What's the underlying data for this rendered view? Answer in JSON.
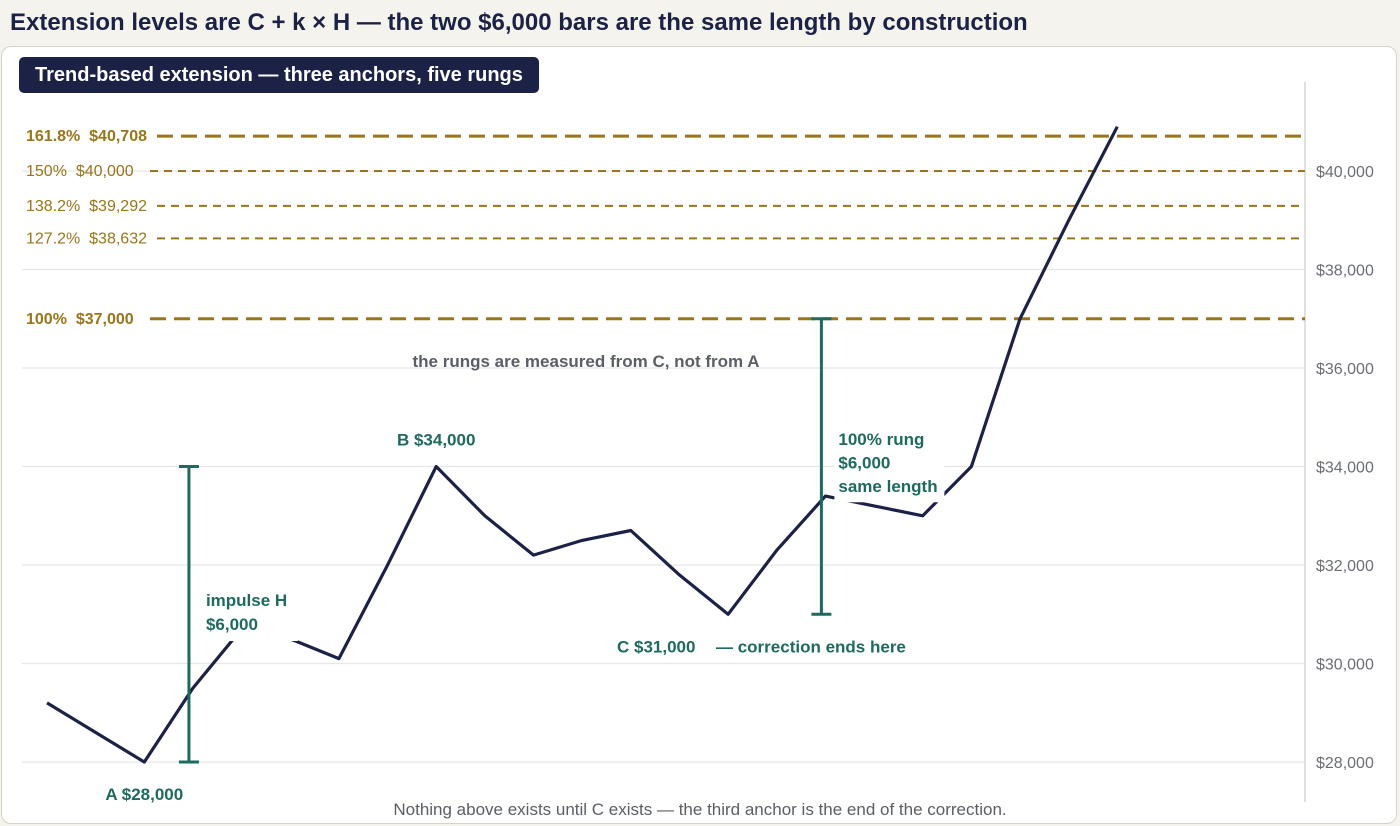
{
  "title": "Extension levels are C + k × H — the two $6,000 bars are the same length by construction",
  "panel_title": "Trend-based extension — three anchors, five rungs",
  "footnote": "Nothing above exists until C exists — the third anchor is the end of the correction.",
  "colors": {
    "price_line": "#1b2246",
    "fib_gold": "#9a7519",
    "measure_teal": "#1d6a5f",
    "grid": "#e6e6e6",
    "axis_text": "#6b6e75",
    "note_text": "#5a5e66",
    "background": "#ffffff"
  },
  "chart_data": {
    "type": "line",
    "title": "",
    "xlabel": "",
    "ylabel": "",
    "ylim": [
      27500,
      41500
    ],
    "y_axis_position": "right",
    "yticks": [
      28000,
      30000,
      32000,
      34000,
      36000,
      38000,
      40000
    ],
    "ytick_labels": [
      "$28,000",
      "$30,000",
      "$32,000",
      "$34,000",
      "$36,000",
      "$38,000",
      "$40,000"
    ],
    "grid": true,
    "series": [
      {
        "values": [
          29200,
          28600,
          28000,
          29500,
          30700,
          30500,
          30100,
          32000,
          34000,
          33000,
          32200,
          32500,
          32700,
          31800,
          31000,
          32300,
          33400,
          33200,
          33000,
          34000,
          37000,
          39000,
          40900
        ]
      }
    ],
    "anchors": [
      {
        "name": "A",
        "label": "A  $28,000",
        "index": 2,
        "value": 28000
      },
      {
        "name": "B",
        "label": "B  $34,000",
        "index": 8,
        "value": 34000
      },
      {
        "name": "C",
        "label": "C  $31,000",
        "note": "— correction ends here",
        "index": 14,
        "value": 31000
      }
    ],
    "levels": [
      {
        "pct": "161.8%",
        "price": "$40,708",
        "value": 40708,
        "emphasis": true
      },
      {
        "pct": "150%",
        "price": "$40,000",
        "value": 40000,
        "emphasis": false
      },
      {
        "pct": "138.2%",
        "price": "$39,292",
        "value": 39292,
        "emphasis": false
      },
      {
        "pct": "127.2%",
        "price": "$38,632",
        "value": 38632,
        "emphasis": false
      },
      {
        "pct": "100%",
        "price": "$37,000",
        "value": 37000,
        "emphasis": true
      }
    ],
    "measures": [
      {
        "from": 28000,
        "to": 34000,
        "x_index": 3,
        "lines": [
          "impulse H",
          "$6,000"
        ]
      },
      {
        "from": 31000,
        "to": 37000,
        "x_index": 16,
        "lines": [
          "100% rung",
          "$6,000",
          "same length"
        ]
      }
    ],
    "annotation": "the rungs are measured from C, not from A"
  }
}
